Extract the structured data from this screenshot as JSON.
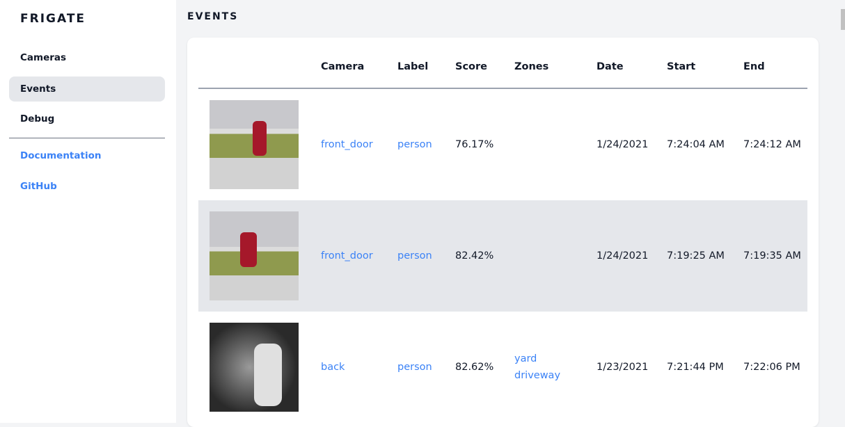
{
  "sidebar": {
    "brand": "FRIGATE",
    "items": [
      {
        "label": "Cameras"
      },
      {
        "label": "Events",
        "active": true
      },
      {
        "label": "Debug"
      }
    ],
    "links": [
      {
        "label": "Documentation"
      },
      {
        "label": "GitHub"
      }
    ]
  },
  "page": {
    "title": "EVENTS"
  },
  "table": {
    "headers": [
      "Camera",
      "Label",
      "Score",
      "Zones",
      "Date",
      "Start",
      "End"
    ],
    "rows": [
      {
        "camera": "front_door",
        "label": "person",
        "score": "76.17%",
        "zones": [
          "",
          ""
        ],
        "date": "1/24/2021",
        "start": "7:24:04 AM",
        "end": "7:24:12 AM"
      },
      {
        "camera": "front_door",
        "label": "person",
        "score": "82.42%",
        "zones": [
          "",
          ""
        ],
        "date": "1/24/2021",
        "start": "7:19:25 AM",
        "end": "7:19:35 AM"
      },
      {
        "camera": "back",
        "label": "person",
        "score": "82.62%",
        "zones": [
          "yard",
          "driveway"
        ],
        "date": "1/23/2021",
        "start": "7:21:44 PM",
        "end": "7:22:06 PM"
      }
    ]
  },
  "colors": {
    "accent": "#3b82f6",
    "active_bg": "#e5e7eb"
  }
}
